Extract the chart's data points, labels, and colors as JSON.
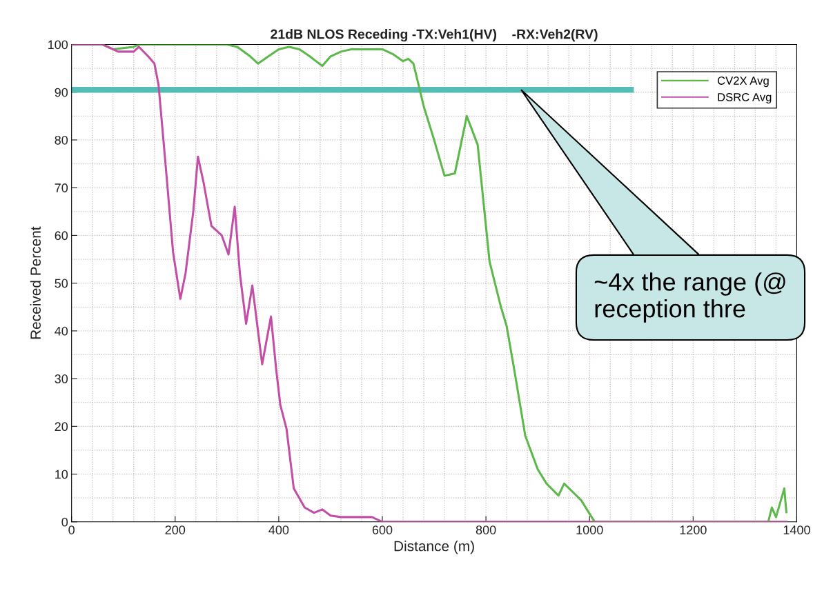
{
  "chart_data": {
    "type": "line",
    "title": "21dB NLOS Receding -TX:Veh1(HV)    -RX:Veh2(RV)",
    "xlabel": "Distance (m)",
    "ylabel": "Received Percent",
    "xlim": [
      0,
      1400
    ],
    "ylim": [
      0,
      100
    ],
    "xticks": [
      0,
      200,
      400,
      600,
      800,
      1000,
      1200,
      1400
    ],
    "yticks": [
      0,
      10,
      20,
      30,
      40,
      50,
      60,
      70,
      80,
      90,
      100
    ],
    "grid": true,
    "legend": "top right",
    "line_style": "solid",
    "marker": "none",
    "series": [
      {
        "name": "CV2X Avg",
        "color": "#5cb84a",
        "x": [
          0,
          60,
          80,
          120,
          130,
          300,
          320,
          345,
          360,
          380,
          400,
          420,
          440,
          460,
          484,
          500,
          520,
          540,
          600,
          620,
          640,
          650,
          660,
          680,
          700,
          720,
          740,
          763,
          784,
          807,
          829,
          840,
          856,
          876,
          900,
          917,
          940,
          951,
          970,
          984,
          1004,
          1010,
          1345,
          1352,
          1360,
          1368,
          1376,
          1380
        ],
        "values": [
          100,
          100,
          99,
          99.5,
          100,
          100,
          99.5,
          97.5,
          96,
          97.5,
          99,
          99.5,
          99,
          97.5,
          95.5,
          97.5,
          98.5,
          99,
          99,
          98,
          96.5,
          97,
          96,
          87,
          80,
          72.5,
          73,
          85,
          79,
          54.5,
          45,
          41,
          31,
          18,
          11,
          8,
          5.5,
          8,
          6,
          4.5,
          1,
          0,
          0,
          3,
          1,
          4,
          7,
          2
        ]
      },
      {
        "name": "DSRC Avg",
        "color": "#c24fa6",
        "x": [
          0,
          60,
          90,
          120,
          130,
          148,
          160,
          168,
          181,
          196,
          210,
          220,
          235,
          244,
          255,
          270,
          290,
          303,
          315,
          325,
          337,
          349,
          368,
          385,
          395,
          403,
          415,
          429,
          450,
          468,
          484,
          500,
          520,
          580,
          600,
          1380
        ],
        "values": [
          100,
          100,
          98.5,
          98.5,
          99.5,
          97.5,
          96,
          91.5,
          75.5,
          56.5,
          46.7,
          52,
          65,
          76.5,
          71,
          62,
          60,
          56,
          66,
          52,
          41.5,
          49.5,
          33,
          43,
          32,
          24.5,
          19.5,
          7,
          3,
          1.9,
          2.6,
          1.3,
          1,
          1,
          0,
          0
        ]
      },
      {
        "color": "#55bdb5",
        "x": [
          0,
          1080
        ],
        "values": [
          90.5,
          90.5
        ]
      }
    ],
    "annotations": [
      "~4x the range (@\nreception thre"
    ]
  }
}
